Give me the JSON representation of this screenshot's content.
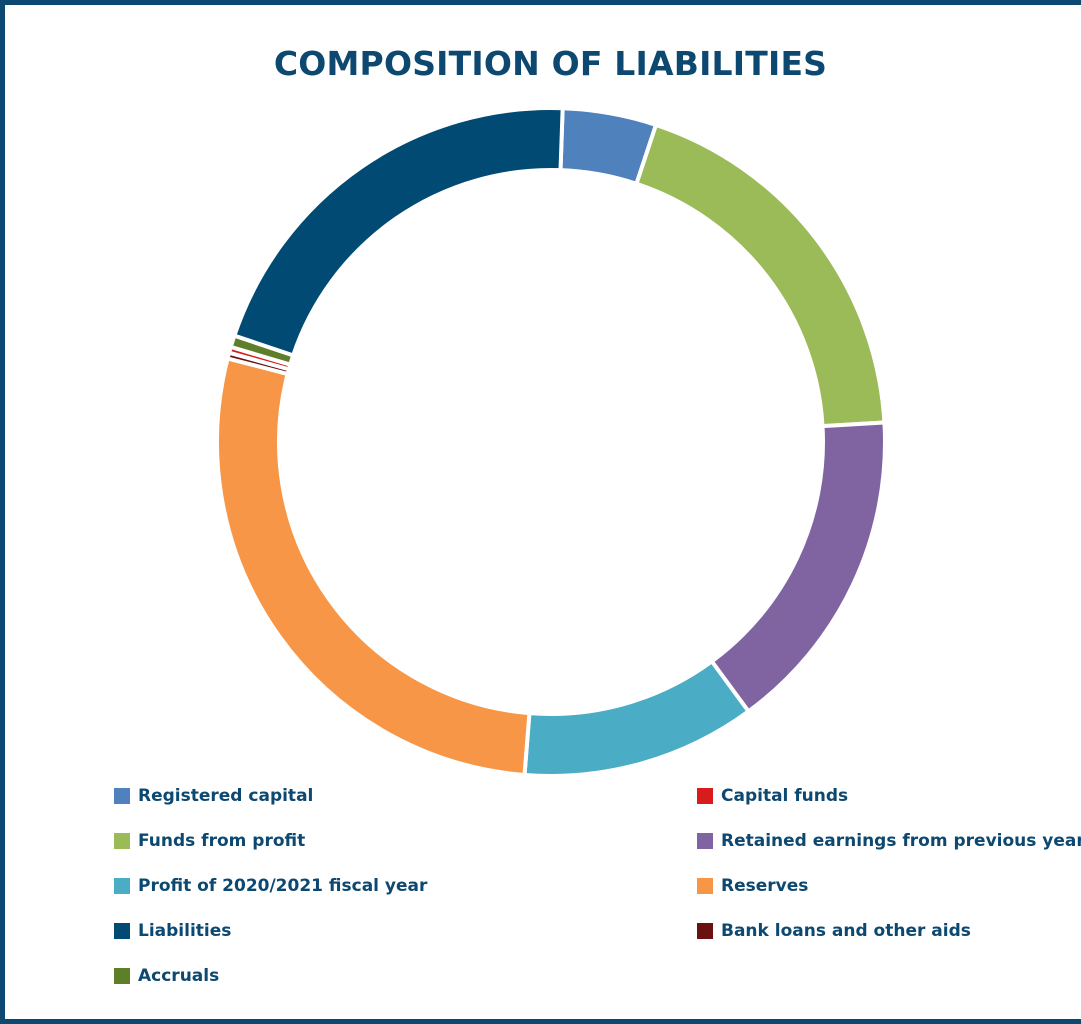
{
  "chart_data": {
    "type": "pie",
    "title": "COMPOSITION OF LIABILITIES",
    "donut": true,
    "legend_position": "bottom",
    "series": [
      {
        "name": "Registered capital",
        "value": 4.8,
        "color": "#4f81bd"
      },
      {
        "name": "Funds from profit",
        "value": 20.1,
        "color": "#9bbb59"
      },
      {
        "name": "Retained earnings from previous years",
        "value": 16.8,
        "color": "#8064a2"
      },
      {
        "name": "Profit of 2020/2021 fiscal year",
        "value": 12.0,
        "color": "#4bacc6"
      },
      {
        "name": "Reserves",
        "value": 29.4,
        "color": "#f79646"
      },
      {
        "name": "Bank loans and other aids",
        "value": 0.3,
        "color": "#6a1111"
      },
      {
        "name": "Capital funds",
        "value": 0.3,
        "color": "#d81b1b"
      },
      {
        "name": "Accruals",
        "value": 0.6,
        "color": "#5e7e2a"
      },
      {
        "name": "Liabilities",
        "value": 21.6,
        "color": "#004a73"
      }
    ],
    "legend_order": [
      "Registered capital",
      "Capital funds",
      "Funds from profit",
      "Retained earnings from previous years",
      "Profit of 2020/2021 fiscal year",
      "Reserves",
      "Liabilities",
      "Bank loans and other aids",
      "Accruals"
    ]
  }
}
